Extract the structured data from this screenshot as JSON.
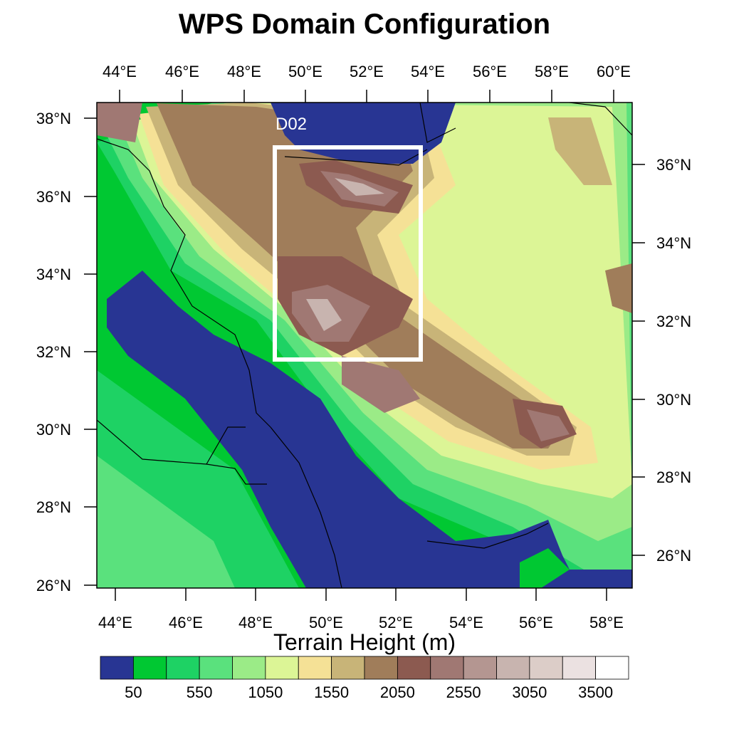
{
  "title": "WPS Domain Configuration",
  "nested_domain_label": "D02",
  "colorbar": {
    "title": "Terrain Height (m)",
    "colors": [
      "#283593",
      "#00c832",
      "#1ed264",
      "#5ae17d",
      "#9beb87",
      "#dcf596",
      "#f5e196",
      "#c8b478",
      "#a07d5a",
      "#8c5a50",
      "#a07873",
      "#b49691",
      "#c8b4af",
      "#dccdc8",
      "#ebe1e1",
      "#ffffff"
    ],
    "labels": [
      "50",
      "550",
      "1050",
      "1550",
      "2050",
      "2550",
      "3050",
      "3500"
    ]
  },
  "axes": {
    "top_lon": [
      "44°E",
      "46°E",
      "48°E",
      "50°E",
      "52°E",
      "54°E",
      "56°E",
      "58°E",
      "60°E"
    ],
    "bottom_lon": [
      "44°E",
      "46°E",
      "48°E",
      "50°E",
      "52°E",
      "54°E",
      "56°E",
      "58°E"
    ],
    "left_lat": [
      "38°N",
      "36°N",
      "34°N",
      "32°N",
      "30°N",
      "28°N",
      "26°N"
    ],
    "right_lat": [
      "36°N",
      "34°N",
      "32°N",
      "30°N",
      "28°N",
      "26°N"
    ]
  }
}
